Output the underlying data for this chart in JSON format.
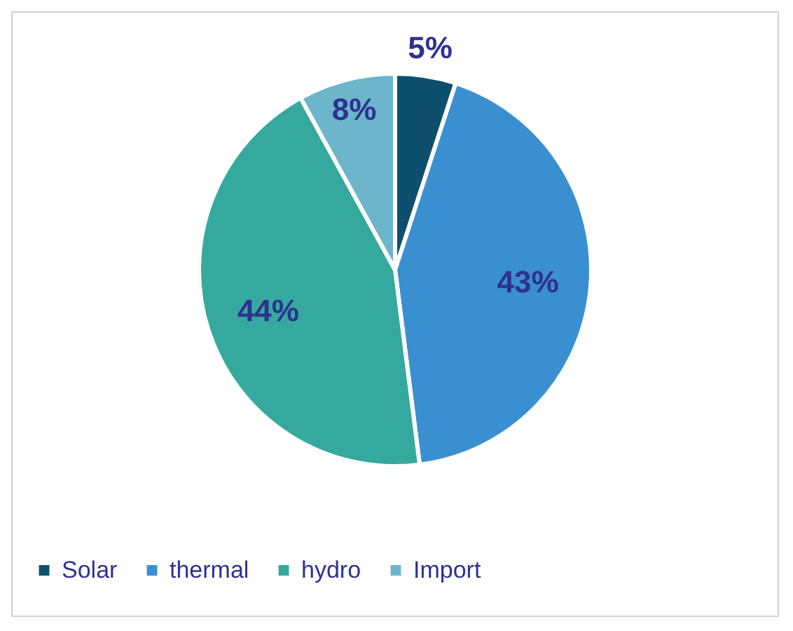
{
  "chart_data": {
    "type": "pie",
    "categories": [
      "Solar",
      "thermal",
      "hydro",
      "Import"
    ],
    "values": [
      5,
      43,
      44,
      8
    ],
    "colors": [
      "#0e4f6d",
      "#3a8fd1",
      "#36a99e",
      "#6cb5cb"
    ],
    "value_labels": [
      "5%",
      "43%",
      "44%",
      "8%"
    ],
    "legend": "bottom"
  }
}
